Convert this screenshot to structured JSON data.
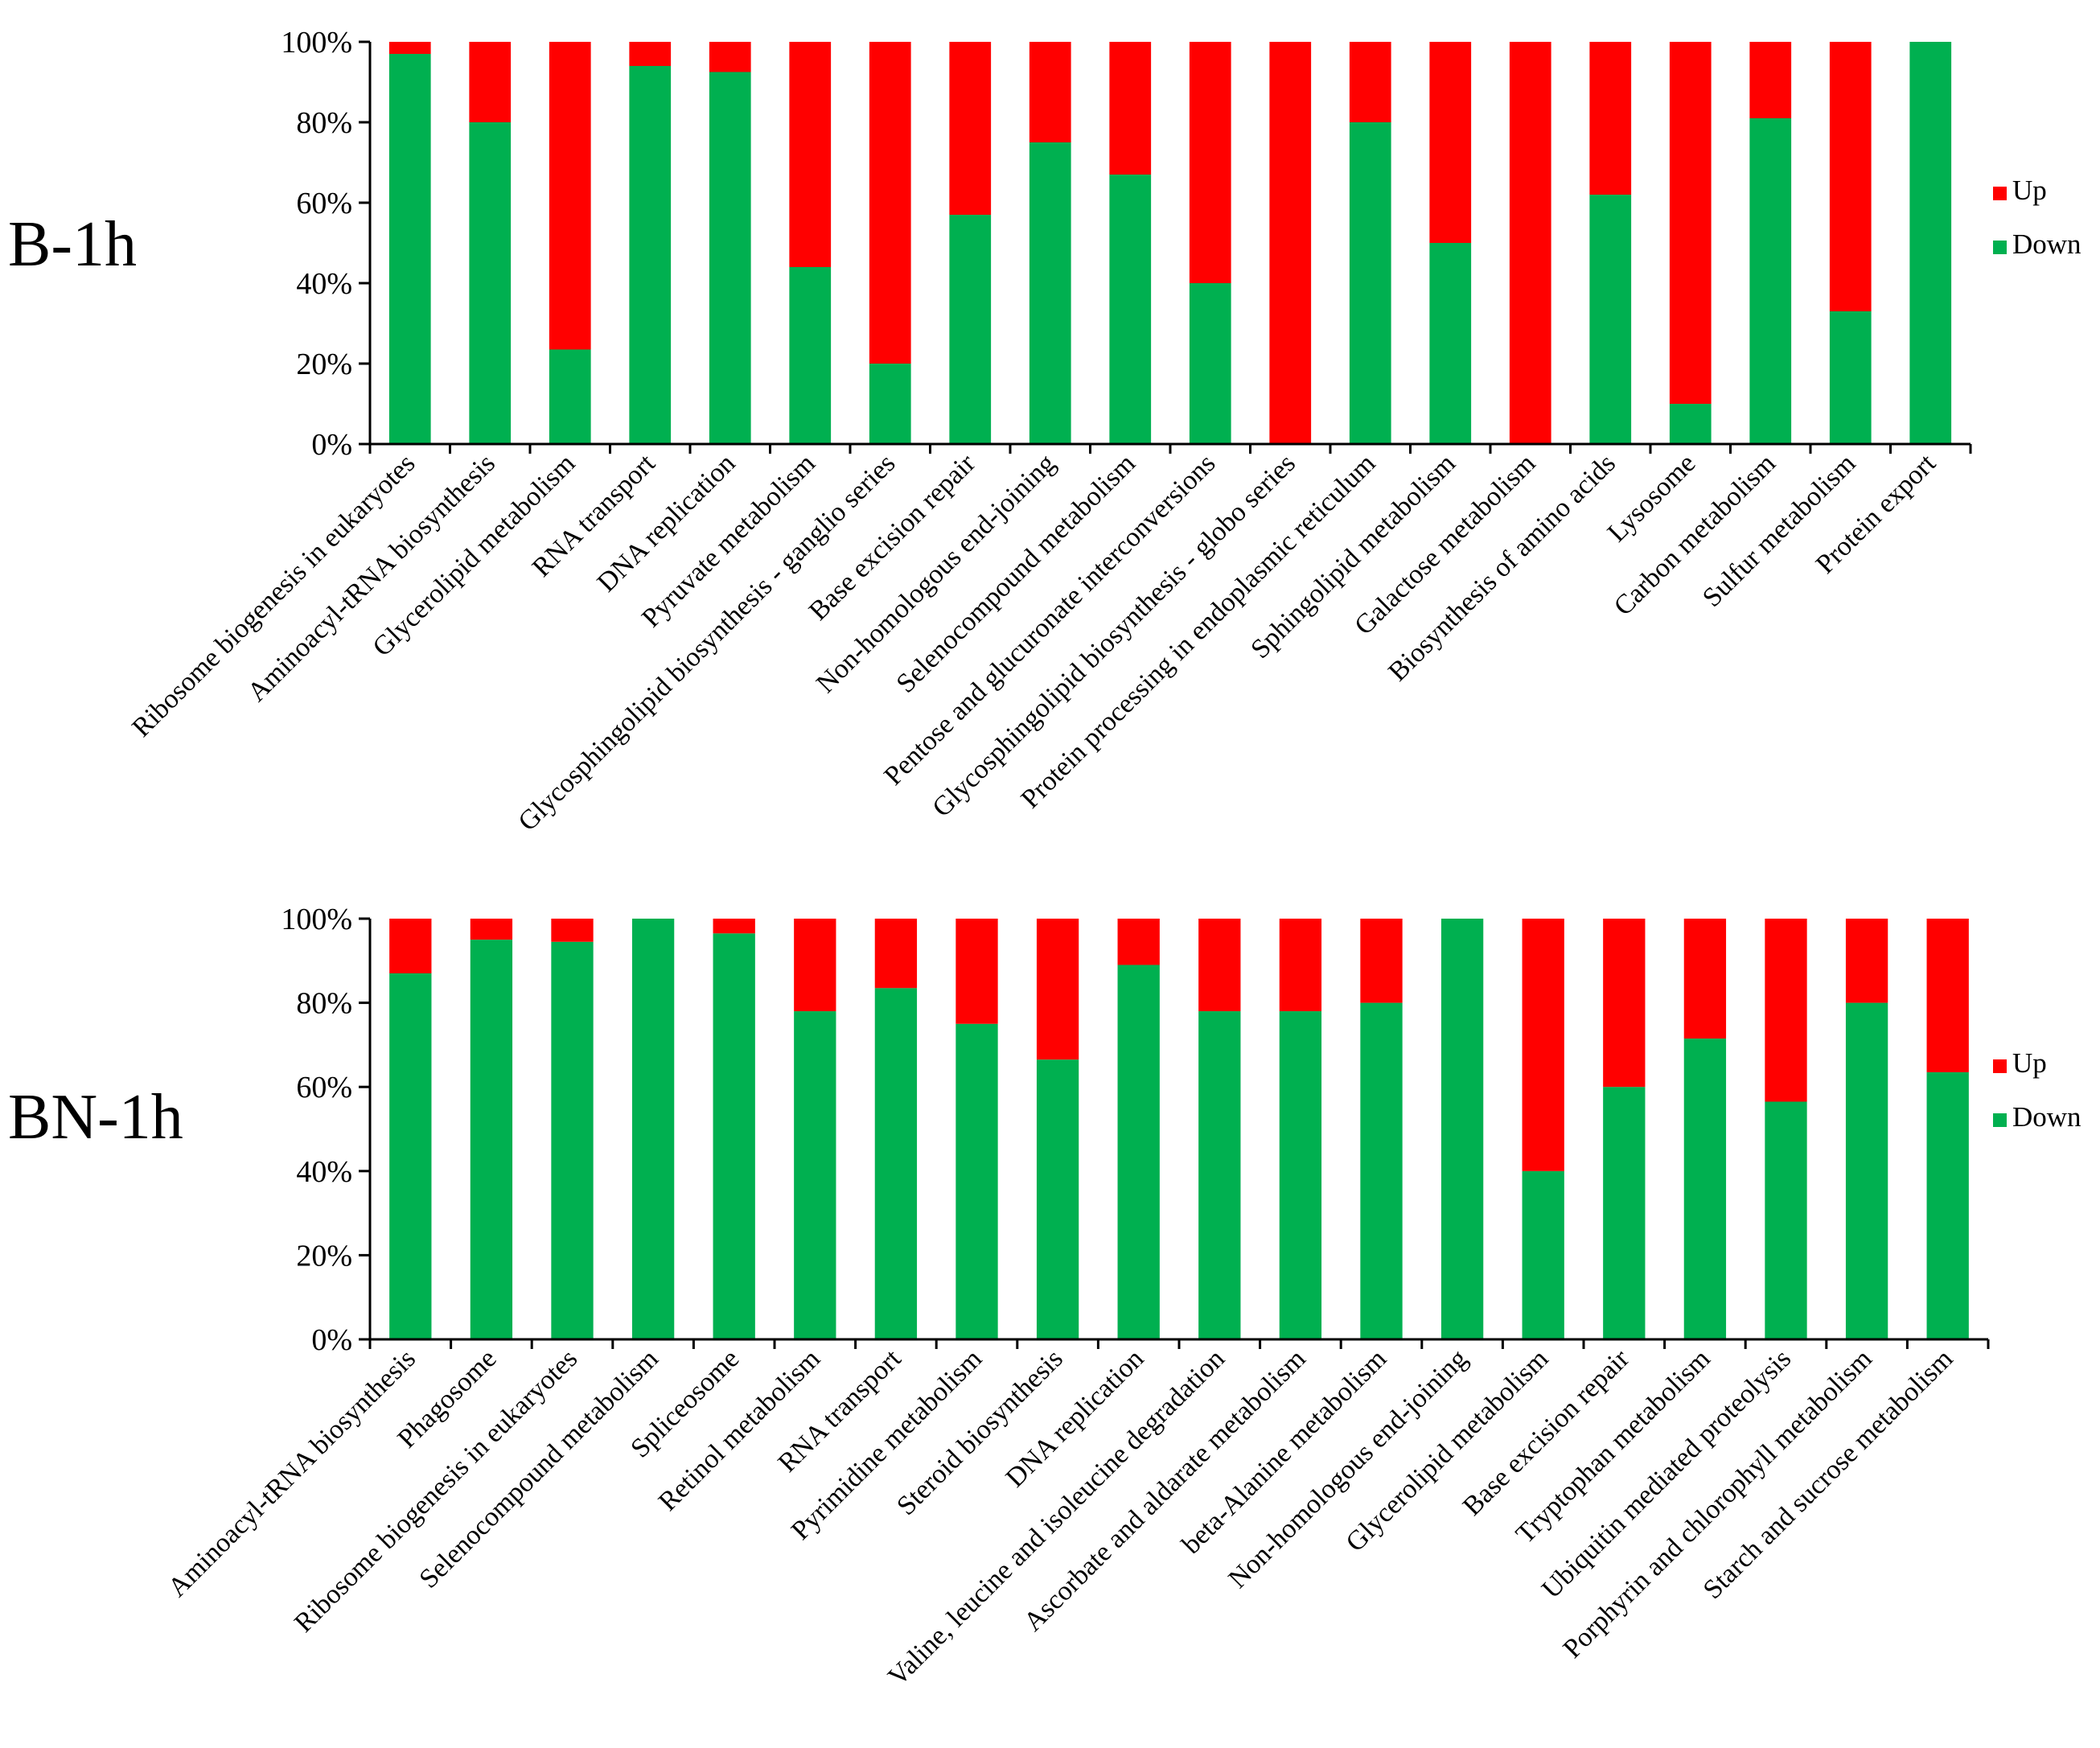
{
  "colors": {
    "up": "#ff0000",
    "down": "#00b050",
    "axis": "#000000"
  },
  "chart_data": [
    {
      "type": "bar",
      "stacked": true,
      "normalized": true,
      "title": "B-1h",
      "ylim": [
        0,
        100
      ],
      "yticks": [
        "0%",
        "20%",
        "40%",
        "60%",
        "80%",
        "100%"
      ],
      "legend_position": "right",
      "categories": [
        "Ribosome biogenesis in eukaryotes",
        "Aminoacyl-tRNA biosynthesis",
        "Glycerolipid metabolism",
        "RNA transport",
        "DNA replication",
        "Pyruvate metabolism",
        "Glycosphingolipid biosynthesis - ganglio series",
        "Base excision repair",
        "Non-homologous end-joining",
        "Selenocompound metabolism",
        "Pentose and glucuronate interconversions",
        "Glycosphingolipid biosynthesis - globo series",
        "Protein processing in endoplasmic reticulum",
        "Sphingolipid metabolism",
        "Galactose metabolism",
        "Biosynthesis of amino acids",
        "Lysosome",
        "Carbon metabolism",
        "Sulfur metabolism",
        "Protein export"
      ],
      "series": [
        {
          "name": "Down",
          "values": [
            97,
            80,
            23.5,
            94,
            92.5,
            44,
            20,
            57,
            75,
            67,
            40,
            0,
            80,
            50,
            0,
            62,
            10,
            81,
            33,
            100
          ]
        },
        {
          "name": "Up",
          "values": [
            3,
            20,
            76.5,
            6,
            7.5,
            56,
            80,
            43,
            25,
            33,
            60,
            100,
            20,
            50,
            100,
            38,
            90,
            19,
            67,
            0
          ]
        }
      ],
      "legend": [
        "Up",
        "Down"
      ]
    },
    {
      "type": "bar",
      "stacked": true,
      "normalized": true,
      "title": "BN-1h",
      "ylim": [
        0,
        100
      ],
      "yticks": [
        "0%",
        "20%",
        "40%",
        "60%",
        "80%",
        "100%"
      ],
      "legend_position": "right",
      "categories": [
        "Aminoacyl-tRNA biosynthesis",
        "Phagosome",
        "Ribosome biogenesis in eukaryotes",
        "Selenocompound metabolism",
        "Spliceosome",
        "Retinol metabolism",
        "RNA transport",
        "Pyrimidine metabolism",
        "Steroid biosynthesis",
        "DNA replication",
        "Valine, leucine and isoleucine degradation",
        "Ascorbate and aldarate metabolism",
        "beta-Alanine metabolism",
        "Non-homologous end-joining",
        "Glycerolipid metabolism",
        "Base excision repair",
        "Tryptophan metabolism",
        "Ubiquitin mediated proteolysis",
        "Porphyrin and chlorophyll metabolism",
        "Starch and sucrose metabolism"
      ],
      "series": [
        {
          "name": "Down",
          "values": [
            87,
            95,
            94.5,
            100,
            96.5,
            78,
            83.5,
            75,
            66.5,
            89,
            78,
            78,
            80,
            100,
            40,
            60,
            71.5,
            56.5,
            80,
            63.5
          ]
        },
        {
          "name": "Up",
          "values": [
            13,
            5,
            5.5,
            0,
            3.5,
            22,
            16.5,
            25,
            33.5,
            11,
            22,
            22,
            20,
            0,
            60,
            40,
            28.5,
            43.5,
            20,
            36.5
          ]
        }
      ],
      "legend": [
        "Up",
        "Down"
      ]
    }
  ]
}
